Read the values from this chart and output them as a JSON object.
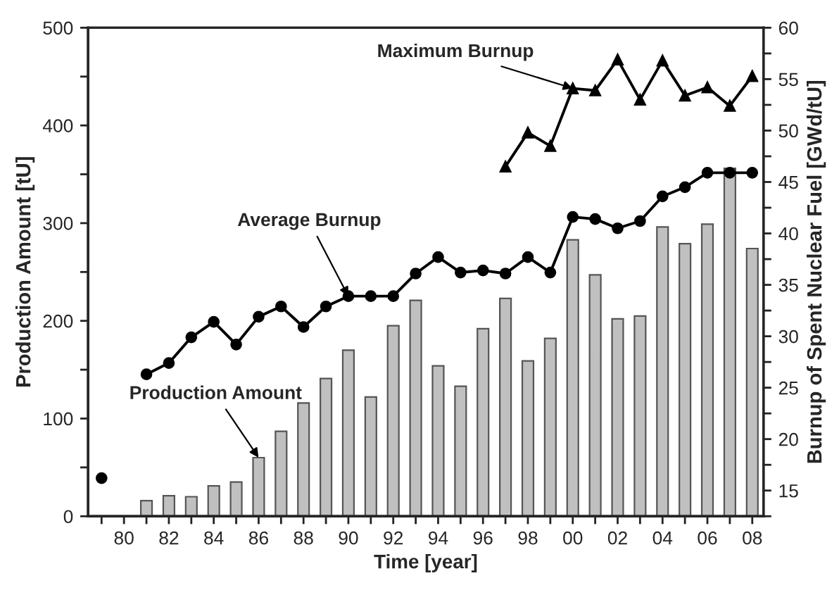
{
  "chart_data": {
    "type": "bar",
    "xlabel": "Time [year]",
    "ylabel": "Production Amount [tU]",
    "y2label": "Burnup of Spent Nuclear Fuel [GWd/tU]",
    "categories": [
      null,
      "80",
      null,
      "82",
      null,
      "84",
      null,
      "86",
      null,
      "88",
      null,
      "90",
      null,
      "92",
      null,
      "94",
      null,
      "96",
      null,
      "98",
      null,
      "00",
      null,
      "02",
      null,
      "04",
      null,
      "06",
      null,
      "08"
    ],
    "series": [
      {
        "type": "bar",
        "color": "#c0c0c0",
        "values": [
          null,
          null,
          16,
          21,
          20,
          31,
          35,
          60,
          87,
          116,
          141,
          170,
          122,
          195,
          221,
          154,
          133,
          192,
          223,
          159,
          182,
          283,
          247,
          202,
          205,
          296,
          279,
          299,
          356,
          274
        ]
      },
      {
        "type": "line",
        "axis": "y2",
        "marker": "circle",
        "line_style": "solid",
        "color": "#000000",
        "values": [
          16.2,
          null,
          26.3,
          27.4,
          29.9,
          31.4,
          29.2,
          31.9,
          32.9,
          30.9,
          32.9,
          33.9,
          33.9,
          33.9,
          36.1,
          37.7,
          36.2,
          36.4,
          36.1,
          37.7,
          36.2,
          41.6,
          41.4,
          40.5,
          41.2,
          43.6,
          44.5,
          45.9,
          45.9,
          45.9
        ]
      },
      {
        "type": "line",
        "axis": "y2",
        "marker": "triangle",
        "line_style": "solid",
        "color": "#000000",
        "values": [
          null,
          null,
          null,
          null,
          null,
          null,
          null,
          null,
          null,
          null,
          null,
          null,
          null,
          null,
          null,
          null,
          null,
          null,
          46.5,
          49.8,
          48.5,
          54.1,
          53.9,
          56.9,
          53.0,
          56.8,
          53.4,
          54.2,
          52.4,
          55.3
        ]
      }
    ],
    "ylim": [
      0,
      500
    ],
    "yticks": [
      0,
      {
        "value": 50,
        "label": null
      },
      100,
      {
        "value": 150,
        "label": null
      },
      200,
      {
        "value": 250,
        "label": null
      },
      300,
      {
        "value": 350,
        "label": null
      },
      400,
      {
        "value": 450,
        "label": null
      },
      500
    ],
    "y2lim": [
      12.5,
      60
    ],
    "y2ticks": [
      {
        "value": 12.5,
        "label": null
      },
      15,
      {
        "value": 17.5,
        "label": null
      },
      20,
      {
        "value": 22.5,
        "label": null
      },
      25,
      {
        "value": 27.5,
        "label": null
      },
      30,
      {
        "value": 32.5,
        "label": null
      },
      35,
      {
        "value": 37.5,
        "label": null
      },
      40,
      {
        "value": 42.5,
        "label": null
      },
      45,
      {
        "value": 47.5,
        "label": null
      },
      50,
      {
        "value": 52.5,
        "label": null
      },
      55,
      {
        "value": 57.5,
        "label": null
      },
      60
    ],
    "annotations": [
      {
        "text": "Production Amount",
        "x": "86",
        "y": 60
      },
      {
        "text": "Average Burnup",
        "x": "90",
        "y": 225
      },
      {
        "text": "Maximum Burnup",
        "x": "00",
        "y": 438
      }
    ],
    "grid": false,
    "legend": false
  }
}
